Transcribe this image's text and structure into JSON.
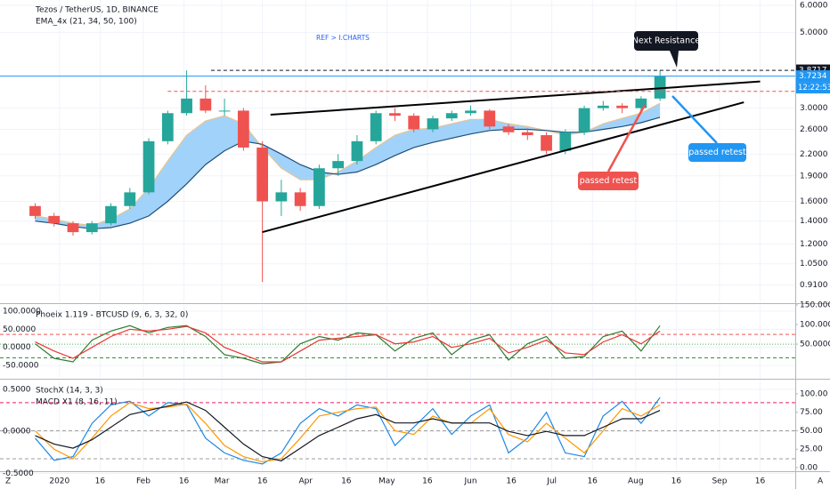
{
  "toolbar": {
    "left": "Z",
    "right": "A"
  },
  "chart_data": [
    {
      "type": "candlestick",
      "title": "Tezos / TetherUS, 1D, BINANCE",
      "subtitle": "EMA_4x (21, 34, 50, 100)",
      "log_scale": true,
      "grid": true,
      "yaxis_side": "right",
      "up_color": "#26a69a",
      "down_color": "#ef5350",
      "xlim": [
        "2019-12-10",
        "2020-09-29"
      ],
      "ylim": [
        0.81,
        6.22
      ],
      "yticks": [
        {
          "value": 6,
          "label": "6.0000"
        },
        {
          "value": 5,
          "label": "5.0000"
        },
        {
          "value": 3,
          "label": "3.0000"
        },
        {
          "value": 2.6,
          "label": "2.6000"
        },
        {
          "value": 2.2,
          "label": "2.2000"
        },
        {
          "value": 1.9,
          "label": "1.9000"
        },
        {
          "value": 1.6,
          "label": "1.6000"
        },
        {
          "value": 1.4,
          "label": "1.4000"
        },
        {
          "value": 1.2,
          "label": "1.2000"
        },
        {
          "value": 1.05,
          "label": "1.0500"
        },
        {
          "value": 0.91,
          "label": "0.9100"
        }
      ],
      "x": [
        "2019-12-23",
        "2019-12-30",
        "2020-01-06",
        "2020-01-13",
        "2020-01-20",
        "2020-01-27",
        "2020-02-03",
        "2020-02-10",
        "2020-02-17",
        "2020-02-24",
        "2020-03-02",
        "2020-03-09",
        "2020-03-16",
        "2020-03-23",
        "2020-03-30",
        "2020-04-06",
        "2020-04-13",
        "2020-04-20",
        "2020-04-27",
        "2020-05-04",
        "2020-05-11",
        "2020-05-18",
        "2020-05-25",
        "2020-06-01",
        "2020-06-08",
        "2020-06-15",
        "2020-06-22",
        "2020-06-29",
        "2020-07-06",
        "2020-07-13",
        "2020-07-20",
        "2020-07-27",
        "2020-08-03",
        "2020-08-10"
      ],
      "open": [
        1.55,
        1.45,
        1.38,
        1.3,
        1.38,
        1.55,
        1.7,
        2.4,
        2.9,
        3.2,
        2.95,
        2.95,
        2.3,
        1.6,
        1.7,
        1.55,
        2.0,
        2.1,
        2.4,
        2.9,
        2.85,
        2.6,
        2.8,
        2.9,
        2.95,
        2.65,
        2.55,
        2.5,
        2.25,
        2.55,
        3.0,
        3.05,
        3.0,
        3.2
      ],
      "high": [
        1.58,
        1.48,
        1.4,
        1.4,
        1.58,
        1.75,
        2.45,
        2.95,
        3.87,
        3.5,
        3.2,
        3.0,
        2.4,
        1.85,
        1.75,
        2.05,
        2.2,
        2.5,
        2.95,
        3.0,
        2.9,
        2.85,
        2.95,
        3.05,
        2.98,
        2.7,
        2.62,
        2.55,
        2.6,
        3.05,
        3.15,
        3.1,
        3.25,
        3.87
      ],
      "low": [
        1.42,
        1.35,
        1.27,
        1.28,
        1.36,
        1.52,
        1.68,
        2.35,
        2.85,
        2.9,
        2.85,
        2.25,
        0.93,
        1.45,
        1.5,
        1.52,
        1.9,
        2.05,
        2.35,
        2.75,
        2.55,
        2.55,
        2.75,
        2.85,
        2.6,
        2.5,
        2.42,
        2.2,
        2.2,
        2.5,
        2.95,
        2.9,
        2.95,
        3.15
      ],
      "close": [
        1.45,
        1.38,
        1.3,
        1.38,
        1.55,
        1.7,
        2.4,
        2.9,
        3.2,
        2.95,
        2.95,
        2.3,
        1.6,
        1.7,
        1.55,
        2.0,
        2.1,
        2.4,
        2.9,
        2.85,
        2.6,
        2.8,
        2.9,
        2.95,
        2.65,
        2.55,
        2.5,
        2.25,
        2.55,
        3.0,
        3.05,
        3.0,
        3.2,
        3.72
      ],
      "band_color": "#90caf9",
      "ema": [
        {
          "color": "#e8c48f",
          "values": [
            1.45,
            1.42,
            1.38,
            1.36,
            1.42,
            1.52,
            1.75,
            2.1,
            2.5,
            2.75,
            2.85,
            2.7,
            2.3,
            2.0,
            1.85,
            1.85,
            1.95,
            2.1,
            2.3,
            2.5,
            2.6,
            2.62,
            2.7,
            2.78,
            2.78,
            2.7,
            2.65,
            2.58,
            2.5,
            2.55,
            2.7,
            2.8,
            2.9,
            3.1
          ]
        },
        {
          "color": "#1e4f7a",
          "values": [
            1.4,
            1.38,
            1.35,
            1.33,
            1.34,
            1.38,
            1.45,
            1.6,
            1.8,
            2.05,
            2.25,
            2.4,
            2.35,
            2.2,
            2.05,
            1.95,
            1.92,
            1.95,
            2.05,
            2.18,
            2.3,
            2.38,
            2.45,
            2.52,
            2.58,
            2.6,
            2.6,
            2.58,
            2.55,
            2.55,
            2.6,
            2.65,
            2.72,
            2.82
          ]
        }
      ],
      "price_lines": [
        {
          "value": 3.8717,
          "color": "#131722",
          "style": "dashed",
          "from": "2020-02-26",
          "show_label": true
        },
        {
          "value": 3.7234,
          "color": "#2196f3",
          "style": "solid",
          "show_label": true
        },
        {
          "value": 3.36,
          "color": "#ef5350",
          "style": "dashed",
          "from": "2020-02-10",
          "show_label": false
        }
      ],
      "countdown": "12:22:53",
      "trendlines": [
        {
          "x": [
            "2020-03-19",
            "2020-09-16"
          ],
          "y": [
            2.87,
            3.59
          ]
        },
        {
          "x": [
            "2020-03-16",
            "2020-09-10"
          ],
          "y": [
            1.3,
            3.12
          ]
        }
      ],
      "annotations": [
        {
          "text": "REF > I.CHARTS",
          "color": "#2962ff",
          "box": false
        },
        {
          "text": "Next Resistance",
          "color": "#131722",
          "box": true
        },
        {
          "text": "passed retest",
          "color": "#ef5350",
          "box": true
        },
        {
          "text": "passed retest",
          "color": "#2196f3",
          "box": true
        }
      ]
    },
    {
      "type": "line",
      "title": "Phoeix 1.119 - BTCUSD (9, 6, 3, 32, 0)",
      "grid": true,
      "yaxis_side": "left",
      "xlim": [
        "2019-12-10",
        "2020-09-29"
      ],
      "ylim": [
        -84,
        117
      ],
      "y2lim": [
        -36,
        150
      ],
      "yticks": [
        {
          "value": 100,
          "label": "100.0000"
        },
        {
          "value": 50,
          "label": "50.0000"
        },
        {
          "value": 0,
          "label": "0.0000"
        },
        {
          "value": -50,
          "label": "-50.0000"
        }
      ],
      "y2ticks": [
        {
          "value": 150,
          "label": "150.0000"
        },
        {
          "value": 100,
          "label": "100.0000"
        },
        {
          "value": 50,
          "label": "50.0000"
        }
      ],
      "ref_lines": [
        {
          "value": 75,
          "color": "#ef5350",
          "style": "dashed",
          "axis": "y2"
        },
        {
          "value": 50,
          "color": "#4caf50",
          "style": "dotted",
          "axis": "y2"
        },
        {
          "value": 15,
          "color": "#388e3c",
          "style": "dashed",
          "axis": "y2"
        }
      ],
      "x": [
        "2019-12-23",
        "2019-12-30",
        "2020-01-06",
        "2020-01-13",
        "2020-01-20",
        "2020-01-27",
        "2020-02-03",
        "2020-02-10",
        "2020-02-17",
        "2020-02-24",
        "2020-03-02",
        "2020-03-09",
        "2020-03-16",
        "2020-03-23",
        "2020-03-30",
        "2020-04-06",
        "2020-04-13",
        "2020-04-20",
        "2020-04-27",
        "2020-05-04",
        "2020-05-11",
        "2020-05-18",
        "2020-05-25",
        "2020-06-01",
        "2020-06-08",
        "2020-06-15",
        "2020-06-22",
        "2020-06-29",
        "2020-07-06",
        "2020-07-13",
        "2020-07-20",
        "2020-07-27",
        "2020-08-03",
        "2020-08-10"
      ],
      "series": [
        {
          "color": "#2e7d32",
          "values": [
            10,
            -30,
            -40,
            20,
            45,
            60,
            40,
            55,
            60,
            30,
            -20,
            -30,
            -45,
            -40,
            10,
            30,
            20,
            40,
            35,
            -10,
            25,
            40,
            -20,
            20,
            35,
            -35,
            10,
            30,
            -30,
            -25,
            30,
            45,
            -10,
            60
          ]
        },
        {
          "color": "#e53935",
          "values": [
            15,
            -10,
            -30,
            0,
            30,
            50,
            45,
            50,
            58,
            40,
            0,
            -20,
            -40,
            -40,
            -10,
            20,
            25,
            30,
            35,
            10,
            15,
            30,
            0,
            10,
            25,
            -15,
            0,
            20,
            -15,
            -20,
            15,
            35,
            10,
            45
          ]
        }
      ]
    },
    {
      "type": "line",
      "title": "StochX (14, 3, 3)",
      "subtitle": "MACD X1 (8, 16, 11)",
      "grid": true,
      "yaxis_side": "left",
      "xlim": [
        "2019-12-10",
        "2020-09-29"
      ],
      "ylim": [
        -0.474,
        0.605
      ],
      "y2lim": [
        -4.8,
        118
      ],
      "yticks": [
        {
          "value": 0.5,
          "label": "0.5000"
        },
        {
          "value": 0,
          "label": "0.0000"
        },
        {
          "value": -0.5,
          "label": "-0.5000"
        }
      ],
      "y2ticks": [
        {
          "value": 100,
          "label": "100.00"
        },
        {
          "value": 75,
          "label": "75.00"
        },
        {
          "value": 50,
          "label": "50.00"
        },
        {
          "value": 25,
          "label": "25.00"
        },
        {
          "value": 0,
          "label": "0.00"
        }
      ],
      "ref_lines": [
        {
          "value": 88,
          "color": "#e91e63",
          "style": "dashed",
          "axis": "y2"
        },
        {
          "value": 50,
          "color": "#9e9e9e",
          "style": "dashed",
          "axis": "y2"
        },
        {
          "value": 12,
          "color": "#9e9e9e",
          "style": "dashed",
          "axis": "y2"
        }
      ],
      "x": [
        "2019-12-23",
        "2019-12-30",
        "2020-01-06",
        "2020-01-13",
        "2020-01-20",
        "2020-01-27",
        "2020-02-03",
        "2020-02-10",
        "2020-02-17",
        "2020-02-24",
        "2020-03-02",
        "2020-03-09",
        "2020-03-16",
        "2020-03-23",
        "2020-03-30",
        "2020-04-06",
        "2020-04-13",
        "2020-04-20",
        "2020-04-27",
        "2020-05-04",
        "2020-05-11",
        "2020-05-18",
        "2020-05-25",
        "2020-06-01",
        "2020-06-08",
        "2020-06-15",
        "2020-06-22",
        "2020-06-29",
        "2020-07-06",
        "2020-07-13",
        "2020-07-20",
        "2020-07-27",
        "2020-08-03",
        "2020-08-10"
      ],
      "series": [
        {
          "color": "#1e88e5",
          "axis": "y2",
          "values": [
            40,
            10,
            15,
            60,
            85,
            90,
            70,
            88,
            85,
            40,
            20,
            10,
            5,
            20,
            60,
            80,
            70,
            85,
            80,
            30,
            55,
            80,
            45,
            70,
            85,
            20,
            40,
            75,
            20,
            15,
            70,
            90,
            60,
            95
          ]
        },
        {
          "color": "#ff9800",
          "axis": "y2",
          "values": [
            50,
            25,
            12,
            40,
            70,
            88,
            80,
            82,
            86,
            60,
            30,
            15,
            8,
            12,
            40,
            70,
            75,
            80,
            82,
            50,
            45,
            70,
            60,
            60,
            80,
            45,
            35,
            60,
            40,
            20,
            50,
            80,
            70,
            85
          ]
        },
        {
          "color": "#131722",
          "values": [
            -0.05,
            -0.15,
            -0.2,
            -0.1,
            0.05,
            0.2,
            0.25,
            0.3,
            0.35,
            0.25,
            0.05,
            -0.15,
            -0.3,
            -0.35,
            -0.2,
            -0.05,
            0.05,
            0.15,
            0.2,
            0.1,
            0.1,
            0.15,
            0.1,
            0.1,
            0.1,
            0,
            -0.05,
            0,
            -0.05,
            -0.05,
            0.05,
            0.15,
            0.15,
            0.25
          ]
        }
      ],
      "xticks": [
        {
          "value": "2020-01-01",
          "label": "2020"
        },
        {
          "value": "2020-01-16",
          "label": "16"
        },
        {
          "value": "2020-02-01",
          "label": "Feb"
        },
        {
          "value": "2020-02-16",
          "label": "16"
        },
        {
          "value": "2020-03-01",
          "label": "Mar"
        },
        {
          "value": "2020-03-16",
          "label": "16"
        },
        {
          "value": "2020-04-01",
          "label": "Apr"
        },
        {
          "value": "2020-04-16",
          "label": "16"
        },
        {
          "value": "2020-05-01",
          "label": "May"
        },
        {
          "value": "2020-05-16",
          "label": "16"
        },
        {
          "value": "2020-06-01",
          "label": "Jun"
        },
        {
          "value": "2020-06-16",
          "label": "16"
        },
        {
          "value": "2020-07-01",
          "label": "Jul"
        },
        {
          "value": "2020-07-16",
          "label": "16"
        },
        {
          "value": "2020-08-01",
          "label": "Aug"
        },
        {
          "value": "2020-08-16",
          "label": "16"
        },
        {
          "value": "2020-09-01",
          "label": "Sep"
        },
        {
          "value": "2020-09-16",
          "label": "16"
        }
      ]
    }
  ]
}
